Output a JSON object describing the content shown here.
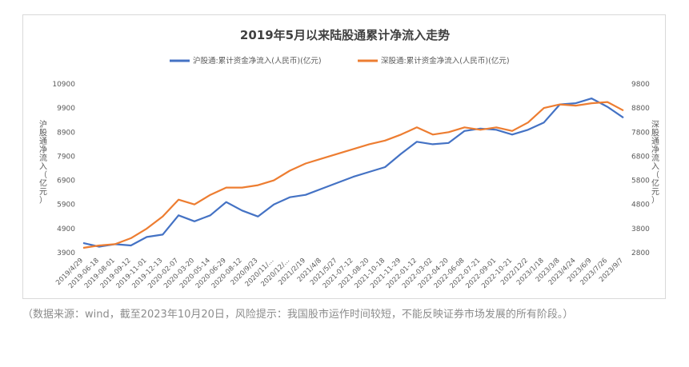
{
  "chart_data": {
    "type": "line",
    "title": "2019年5月以来陆股通累计净流入走势",
    "ylabel_left": "沪股通净流入（亿元）",
    "ylabel_right": "深股通净流入（亿元）",
    "ylim_left": [
      3900,
      10900
    ],
    "ylim_right": [
      2800,
      9800
    ],
    "yticks_left": [
      "10900",
      "9900",
      "8900",
      "7900",
      "6900",
      "5900",
      "4900",
      "3900"
    ],
    "yticks_right": [
      "9800",
      "8800",
      "7800",
      "6800",
      "5800",
      "4800",
      "3800",
      "2800"
    ],
    "x_ticks": [
      "2019/4/29",
      "2019-06-18",
      "2019-08-01",
      "2019-09-12",
      "2019-11-01",
      "2019-12-13",
      "2020-02-07",
      "2020-03-20",
      "2020-05-14",
      "2020-06-29",
      "2020-08-12",
      "2020/9/23",
      "2020/11/...",
      "2020/12/...",
      "2021/2/19",
      "2021/4/8",
      "2021/5/27",
      "2021-07-12",
      "2021-08-20",
      "2021-10-18",
      "2021-11-29",
      "2022-01-12",
      "2022-03-02",
      "2022-04-20",
      "2022-06-08",
      "2022-07-21",
      "2022-09-01",
      "2022-10-21",
      "2022/12/2",
      "2023/1/18",
      "2023/3/8",
      "2023/4/24",
      "2023/6/9",
      "2023/7/26",
      "2023/9/7"
    ],
    "legend_position": "top",
    "series": [
      {
        "name": "沪股通:累计资金净流入(人民币)(亿元)",
        "axis": "left",
        "color": "#4472c4",
        "x": [
          0,
          1,
          2,
          3,
          4,
          5,
          6,
          7,
          8,
          9,
          10,
          11,
          12,
          13,
          14,
          15,
          16,
          17,
          18,
          19,
          20,
          21,
          22,
          23,
          24,
          25,
          26,
          27,
          28,
          29,
          30,
          31,
          32,
          33,
          34
        ],
        "values": [
          4300,
          4150,
          4250,
          4200,
          4550,
          4650,
          5450,
          5200,
          5450,
          6000,
          5650,
          5400,
          5900,
          6200,
          6300,
          6550,
          6800,
          7050,
          7250,
          7450,
          8000,
          8500,
          8400,
          8450,
          8950,
          9050,
          9000,
          8800,
          9000,
          9300,
          10050,
          10100,
          10300,
          9950,
          9500
        ]
      },
      {
        "name": "深股通:累计资金净流入(人民币)(亿元)",
        "axis": "right",
        "color": "#ed7d31",
        "x": [
          0,
          1,
          2,
          3,
          4,
          5,
          6,
          7,
          8,
          9,
          10,
          11,
          12,
          13,
          14,
          15,
          16,
          17,
          18,
          19,
          20,
          21,
          22,
          23,
          24,
          25,
          26,
          27,
          28,
          29,
          30,
          31,
          32,
          33,
          34
        ],
        "values": [
          3000,
          3100,
          3150,
          3400,
          3800,
          4300,
          5000,
          4800,
          5200,
          5500,
          5500,
          5600,
          5800,
          6200,
          6500,
          6700,
          6900,
          7100,
          7300,
          7450,
          7700,
          8000,
          7700,
          7800,
          8000,
          7900,
          8000,
          7850,
          8200,
          8800,
          8950,
          8900,
          9000,
          9050,
          8700
        ]
      }
    ]
  },
  "note": "（数据来源：wind，截至2023年10月20日，风险提示：我国股市运作时间较短，不能反映证券市场发展的所有阶段。）"
}
